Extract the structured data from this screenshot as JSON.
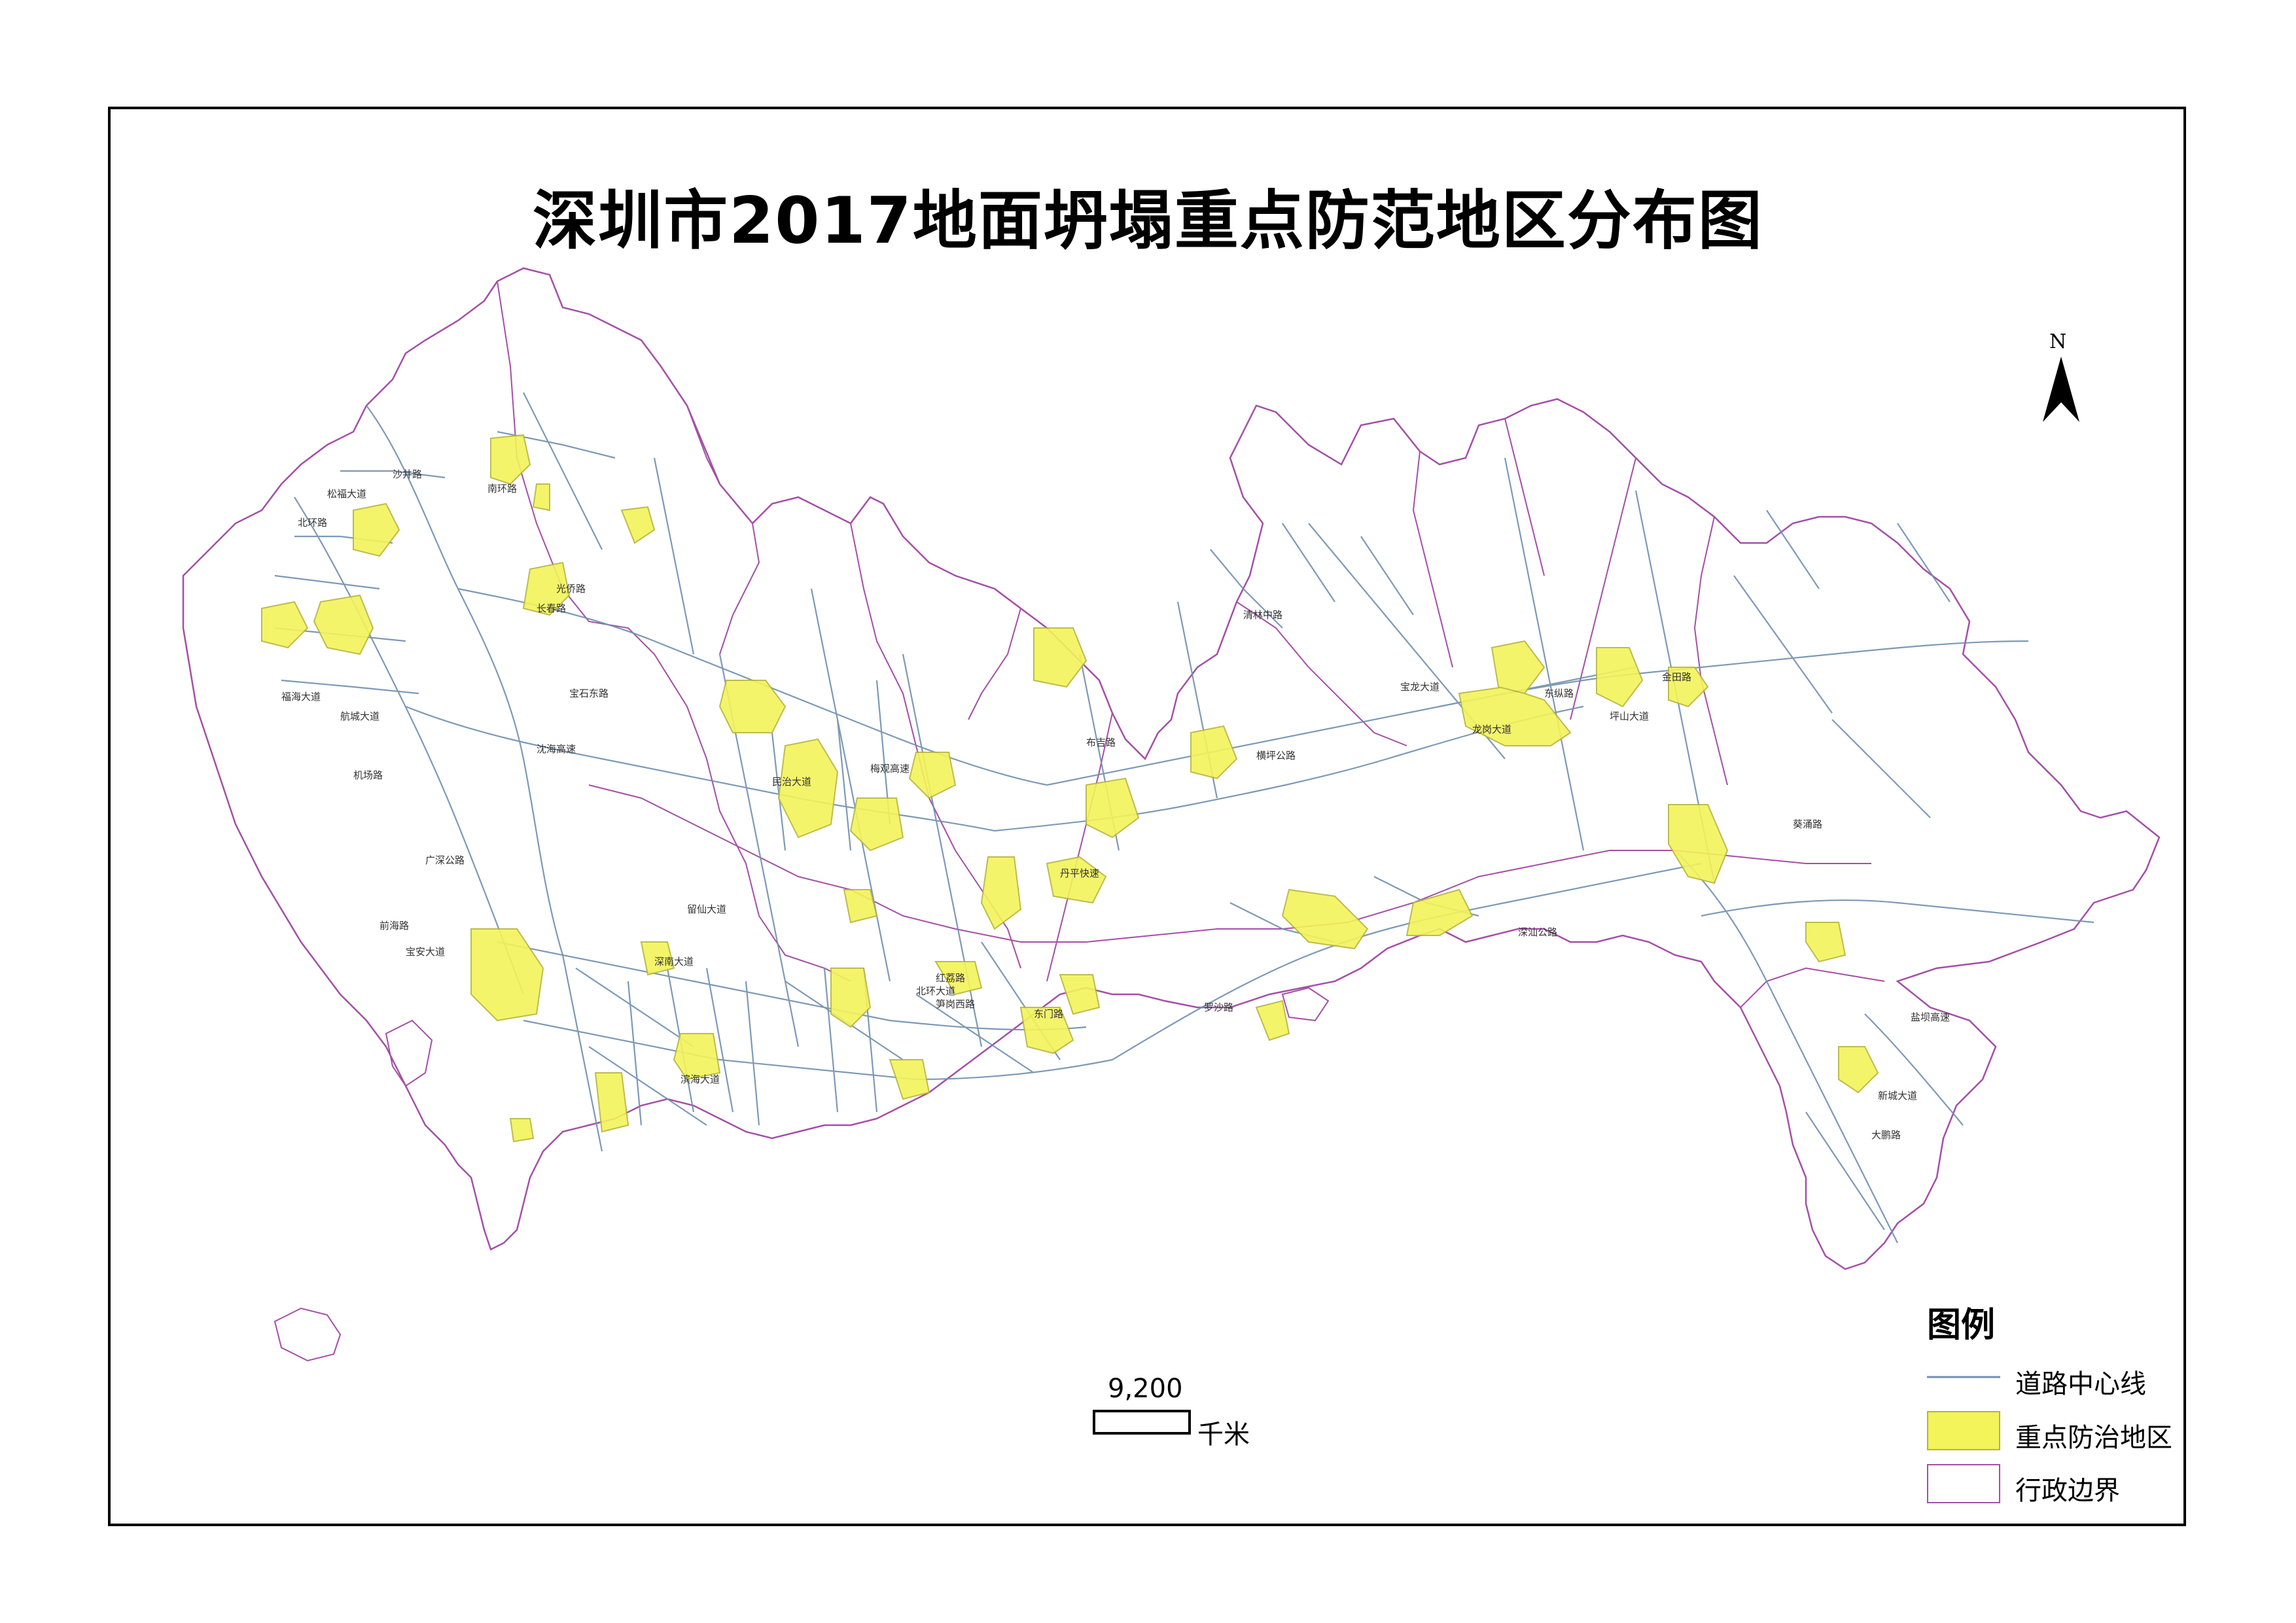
{
  "title": "深圳市2017地面坍塌重点防范地区分布图",
  "north_label": "N",
  "scale": {
    "value": "9,200",
    "unit": "千米"
  },
  "legend": {
    "title": "图例",
    "items": [
      {
        "label": "道路中心线",
        "symbol": "line",
        "color": "#6f8fb0"
      },
      {
        "label": "重点防治地区",
        "symbol": "fill",
        "color": "#f3f35a"
      },
      {
        "label": "行政边界",
        "symbol": "outline",
        "color": "#a44fa6"
      }
    ]
  },
  "colors": {
    "boundary": "#a44fa6",
    "road": "#6f8fb0",
    "zone_fill": "#f3f35a",
    "zone_stroke": "#b5b53a"
  },
  "road_labels": [
    "北环路",
    "南环路",
    "光侨路",
    "长春路",
    "宝石东路",
    "沈海高速",
    "机场路",
    "福海大道",
    "航城大道",
    "广深公路",
    "前海路",
    "宝安大道",
    "留仙大道",
    "深南大道",
    "滨海大道",
    "北环大道",
    "红荔路",
    "笋岗西路",
    "东门路",
    "罗沙路",
    "布吉路",
    "龙岗大道",
    "清林中路",
    "宝龙大道",
    "横坪公路",
    "深汕公路",
    "坪山大道",
    "葵涌路",
    "金田路",
    "东纵路",
    "沙井路",
    "松福大道",
    "民治大道",
    "梅观高速",
    "丹平快速",
    "新城大道",
    "盐坝高速",
    "大鹏路"
  ]
}
